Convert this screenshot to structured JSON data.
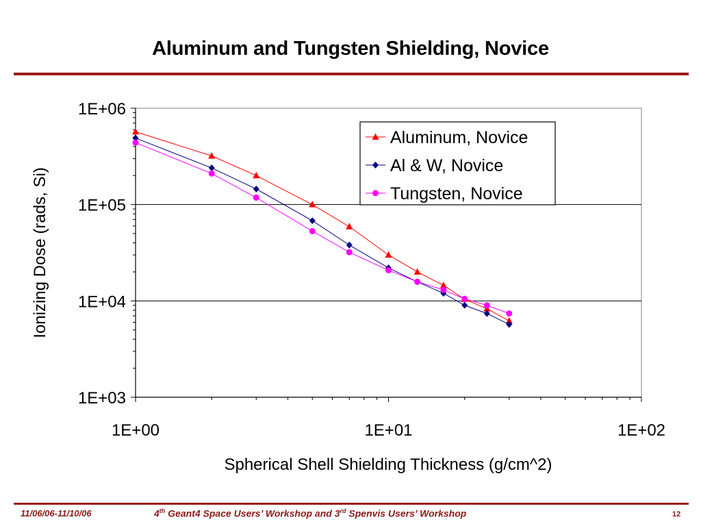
{
  "slide": {
    "title": "Aluminum and Tungsten Shielding, Novice",
    "footer_date": "11/06/06-11/10/06",
    "footer_ord1": "4",
    "footer_sup1": "th",
    "footer_mid": " Geant4 Space Users’ Workshop and 3",
    "footer_sup2": "rd",
    "footer_end": " Spenvis Users’ Workshop",
    "page_number": "12"
  },
  "colors": {
    "accent": "#9c1b1b",
    "aluminum": "#ff0000",
    "al_w": "#000080",
    "tungsten": "#ff00ff"
  },
  "chart_data": {
    "type": "line",
    "xscale": "log",
    "yscale": "log",
    "xlim": [
      1,
      100
    ],
    "ylim": [
      1000,
      1000000
    ],
    "xticks": [
      "1E+00",
      "1E+01",
      "1E+02"
    ],
    "yticks": [
      "1E+03",
      "1E+04",
      "1E+05",
      "1E+06"
    ],
    "xlabel": "Spherical Shell Shielding Thickness (g/cm^2)",
    "ylabel": "Ionizing Dose (rads, Si)",
    "grid": "horizontal major",
    "legend": "top-right",
    "series": [
      {
        "name": "Aluminum, Novice",
        "marker": "triangle",
        "color": "#ff0000",
        "x": [
          1,
          2,
          3,
          5,
          7,
          10,
          13,
          16.5,
          20,
          24.5,
          30
        ],
        "y": [
          570000,
          320000,
          200000,
          100000,
          59000,
          30000,
          20000,
          14500,
          10400,
          8300,
          6200
        ]
      },
      {
        "name": "Al & W, Novice",
        "marker": "diamond",
        "color": "#000080",
        "x": [
          1,
          2,
          3,
          5,
          7,
          10,
          13,
          16.5,
          20,
          24.5,
          30
        ],
        "y": [
          490000,
          240000,
          145000,
          68000,
          38000,
          22000,
          15800,
          12000,
          9000,
          7400,
          5700
        ]
      },
      {
        "name": "Tungsten, Novice",
        "marker": "circle",
        "color": "#ff00ff",
        "x": [
          1,
          2,
          3,
          5,
          7,
          10,
          13,
          16.5,
          20,
          24.5,
          30
        ],
        "y": [
          440000,
          210000,
          118000,
          53000,
          32000,
          20800,
          15800,
          13000,
          10500,
          9000,
          7400
        ]
      }
    ]
  }
}
